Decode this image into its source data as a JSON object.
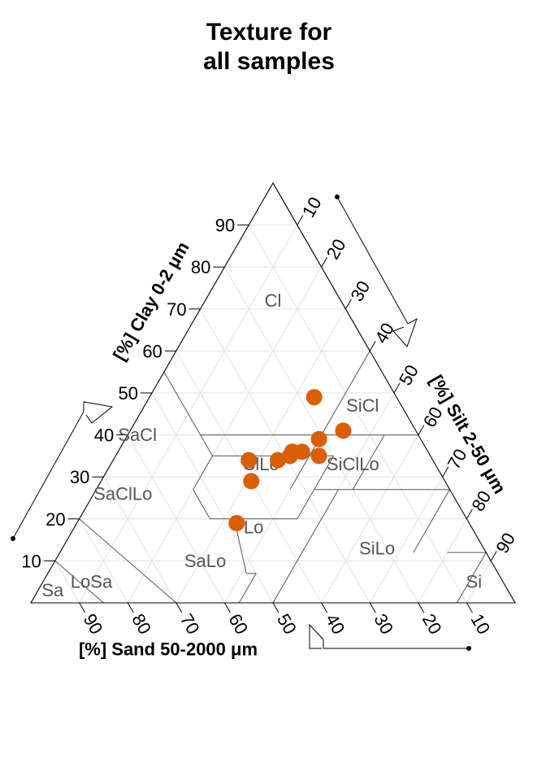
{
  "title": [
    "Texture for",
    "all samples"
  ],
  "chart_data": {
    "type": "scatter",
    "subtype": "ternary",
    "axes": {
      "clay": {
        "label": "[%] Clay 0-2 μm",
        "ticks": [
          10,
          20,
          30,
          40,
          50,
          60,
          70,
          80,
          90
        ]
      },
      "silt": {
        "label": "[%] Silt 2-50 μm",
        "ticks": [
          10,
          20,
          30,
          40,
          50,
          60,
          70,
          80,
          90
        ]
      },
      "sand": {
        "label": "[%] Sand 50-2000 μm",
        "ticks": [
          90,
          80,
          70,
          60,
          50,
          40,
          30,
          20,
          10
        ]
      }
    },
    "grid": true,
    "point_color": "#D95F02",
    "texture_classes": [
      "Cl",
      "SiCl",
      "SaCl",
      "ClLo",
      "SiClLo",
      "SaClLo",
      "Lo",
      "SiLo",
      "SaLo",
      "Si",
      "LoSa",
      "Sa"
    ],
    "points": [
      {
        "clay": 49,
        "silt": 34,
        "sand": 17
      },
      {
        "clay": 41,
        "silt": 44,
        "sand": 15
      },
      {
        "clay": 39,
        "silt": 40,
        "sand": 21
      },
      {
        "clay": 35,
        "silt": 42,
        "sand": 23
      },
      {
        "clay": 36,
        "silt": 38,
        "sand": 26
      },
      {
        "clay": 35,
        "silt": 36,
        "sand": 29
      },
      {
        "clay": 36,
        "silt": 36,
        "sand": 28
      },
      {
        "clay": 34,
        "silt": 34,
        "sand": 32
      },
      {
        "clay": 34,
        "silt": 28,
        "sand": 38
      },
      {
        "clay": 29,
        "silt": 31,
        "sand": 40
      },
      {
        "clay": 19,
        "silt": 33,
        "sand": 48
      }
    ]
  }
}
